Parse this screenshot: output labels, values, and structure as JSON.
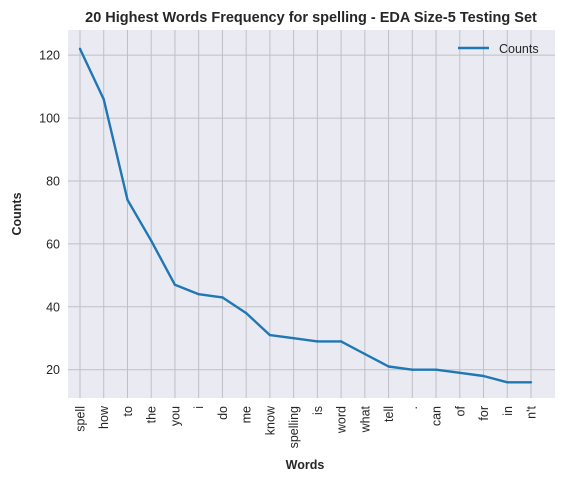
{
  "chart_data": {
    "type": "line",
    "title": "20 Highest Words Frequency for spelling - EDA Size-5 Testing Set",
    "xlabel": "Words",
    "ylabel": "Counts",
    "categories": [
      "spell",
      "how",
      "to",
      "the",
      "you",
      "i",
      "do",
      "me",
      "know",
      "spelling",
      "is",
      "word",
      "what",
      "tell",
      ".",
      "can",
      "of",
      "for",
      "in",
      "n't"
    ],
    "series": [
      {
        "name": "Counts",
        "color": "#1f77b4",
        "values": [
          122,
          106,
          74,
          61,
          47,
          44,
          43,
          38,
          31,
          30,
          29,
          29,
          25,
          21,
          20,
          20,
          19,
          18,
          16,
          16
        ]
      }
    ],
    "ylim": [
      11,
      128
    ],
    "yticks": [
      20,
      40,
      60,
      80,
      100,
      120
    ],
    "grid": true,
    "legend": "top-right",
    "background": "#eaeaf2",
    "grid_color": "#bfbfc6"
  }
}
